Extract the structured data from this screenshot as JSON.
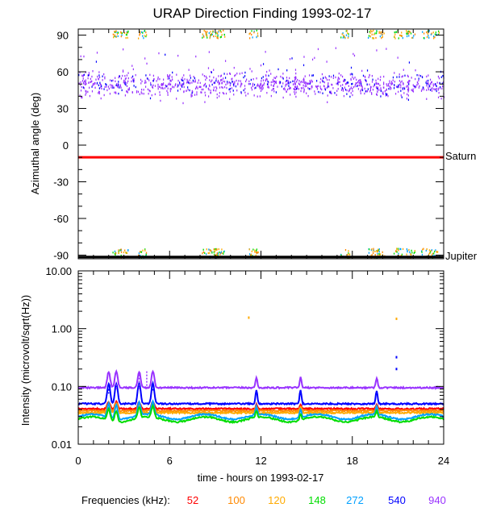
{
  "chart_data": [
    {
      "type": "scatter",
      "title": "URAP Direction Finding  1993-02-17",
      "ylabel": "Azimuthal angle (deg)",
      "ylim": [
        -93,
        95
      ],
      "yticks": [
        90,
        60,
        30,
        0,
        -30,
        -60,
        -90
      ],
      "xlim": [
        0,
        24
      ],
      "grid": false,
      "reference_lines": [
        {
          "name": "Saturn",
          "y": -10,
          "color": "#ff0000"
        },
        {
          "name": "Jupiter",
          "y": -91.5,
          "color": "#000000"
        }
      ],
      "series": [
        {
          "name": "940",
          "color": "#9933ff",
          "band_center": 50,
          "band_spread": 6,
          "density": "high"
        },
        {
          "name": "540",
          "color": "#0000ff",
          "band_center": 52,
          "band_spread": 6,
          "density": "low"
        },
        {
          "name": "272",
          "color": "#00a0ff",
          "clusters_deg": [
            92,
            -88
          ]
        },
        {
          "name": "148",
          "color": "#00dd00",
          "clusters_deg": [
            92,
            -88
          ]
        },
        {
          "name": "120",
          "color": "#ffaa00",
          "clusters_deg": [
            92,
            -88
          ]
        },
        {
          "name": "100",
          "color": "#ff8800",
          "clusters_deg": [
            92,
            -88
          ]
        }
      ]
    },
    {
      "type": "line",
      "ylabel": "Intensity (microvolt/sqrt(Hz))",
      "yscale": "log",
      "ylim": [
        0.01,
        10
      ],
      "yticks": [
        "10.00",
        "1.00",
        "0.10",
        "0.01"
      ],
      "xlabel": "time - hours on 1993-02-17",
      "xlim": [
        0,
        24
      ],
      "xticks": [
        "0",
        "6",
        "12",
        "18",
        "24"
      ],
      "grid": false,
      "burst_times_hours": [
        2.0,
        2.5,
        4.0,
        4.9,
        11.7,
        14.6,
        19.6
      ],
      "isolated_points": [
        {
          "x": 11.2,
          "y": 1.55,
          "color": "#ffaa00"
        },
        {
          "x": 20.9,
          "y": 1.48,
          "color": "#ffaa00"
        },
        {
          "x": 20.9,
          "y": 0.32,
          "color": "#0000ff"
        },
        {
          "x": 20.9,
          "y": 0.2,
          "color": "#0000ff"
        }
      ],
      "series": [
        {
          "name": "940",
          "color": "#9933ff",
          "baseline": 0.095
        },
        {
          "name": "540",
          "color": "#0000ff",
          "baseline": 0.05
        },
        {
          "name": "52",
          "color": "#ff0000",
          "baseline": 0.041
        },
        {
          "name": "100",
          "color": "#ff8800",
          "baseline": 0.038
        },
        {
          "name": "120",
          "color": "#ffaa00",
          "baseline": 0.035
        },
        {
          "name": "272",
          "color": "#00a0ff",
          "baseline": 0.03
        },
        {
          "name": "148",
          "color": "#00dd00",
          "baseline": 0.027
        }
      ]
    }
  ],
  "legend": {
    "label": "Frequencies (kHz):",
    "items": [
      {
        "name": "52",
        "color": "#ff0000"
      },
      {
        "name": "100",
        "color": "#ff8800"
      },
      {
        "name": "120",
        "color": "#ffaa00"
      },
      {
        "name": "148",
        "color": "#00dd00"
      },
      {
        "name": "272",
        "color": "#00a0ff"
      },
      {
        "name": "540",
        "color": "#0000ff"
      },
      {
        "name": "940",
        "color": "#9933ff"
      }
    ]
  }
}
